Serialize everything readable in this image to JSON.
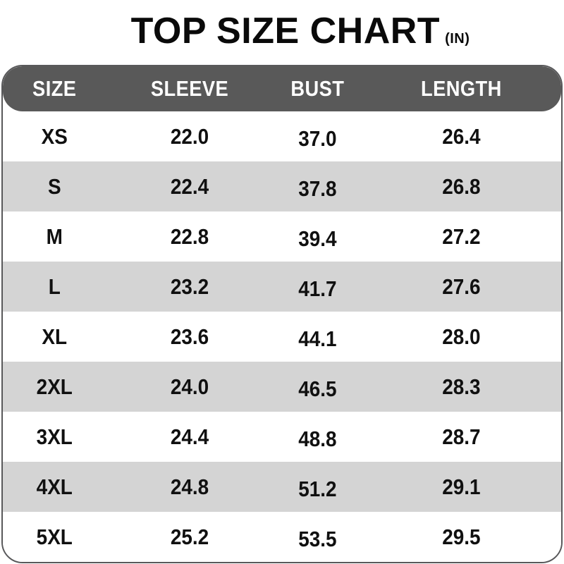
{
  "title": {
    "text": "TOP SIZE CHART",
    "unit_label": "(IN)"
  },
  "chart_data": {
    "type": "table",
    "title": "TOP SIZE CHART (IN)",
    "units": "inches",
    "columns": [
      "SIZE",
      "SLEEVE",
      "BUST",
      "LENGTH"
    ],
    "rows": [
      {
        "size": "XS",
        "sleeve": "22.0",
        "bust": "37.0",
        "length": "26.4"
      },
      {
        "size": "S",
        "sleeve": "22.4",
        "bust": "37.8",
        "length": "26.8"
      },
      {
        "size": "M",
        "sleeve": "22.8",
        "bust": "39.4",
        "length": "27.2"
      },
      {
        "size": "L",
        "sleeve": "23.2",
        "bust": "41.7",
        "length": "27.6"
      },
      {
        "size": "XL",
        "sleeve": "23.6",
        "bust": "44.1",
        "length": "28.0"
      },
      {
        "size": "2XL",
        "sleeve": "24.0",
        "bust": "46.5",
        "length": "28.3"
      },
      {
        "size": "3XL",
        "sleeve": "24.4",
        "bust": "48.8",
        "length": "28.7"
      },
      {
        "size": "4XL",
        "sleeve": "24.8",
        "bust": "51.2",
        "length": "29.1"
      },
      {
        "size": "5XL",
        "sleeve": "25.2",
        "bust": "53.5",
        "length": "29.5"
      }
    ]
  },
  "colors": {
    "header_bg": "#595959",
    "header_text": "#ffffff",
    "stripe_bg": "#d4d4d4",
    "row_bg": "#ffffff",
    "border": "#58585a",
    "text": "#101010",
    "title_text": "#0a0a0a"
  }
}
